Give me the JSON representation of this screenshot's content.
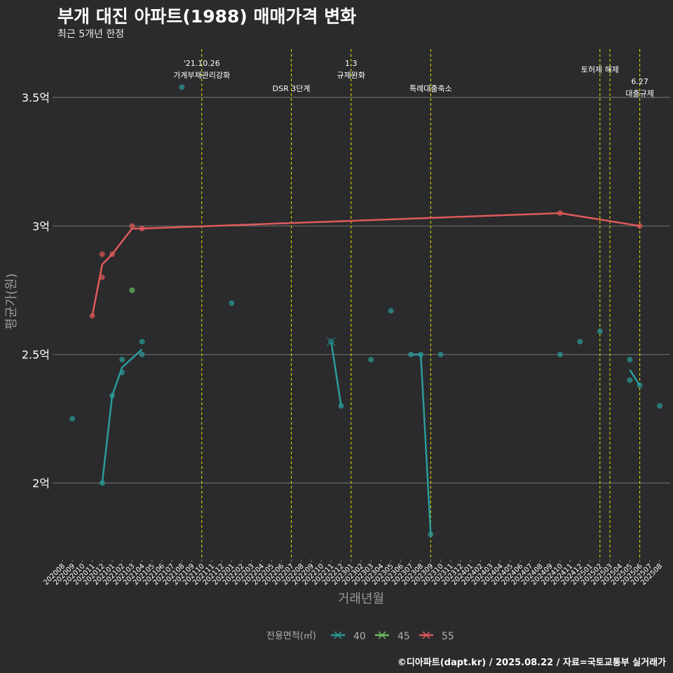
{
  "title": "부개 대진 아파트(1988) 매매가격 변화",
  "subtitle": "최근 5개년 한정",
  "caption": "©디아파트(dapt.kr) / 2025.08.22 / 자료=국토교통부 실거래가",
  "chart_data": {
    "type": "line",
    "xlabel": "거래년월",
    "ylabel": "평균가(원)",
    "ylim": [
      1.7,
      3.7
    ],
    "y_ticks": [
      {
        "value": 2.0,
        "label": "2억"
      },
      {
        "value": 2.5,
        "label": "2.5억"
      },
      {
        "value": 3.0,
        "label": "3억"
      },
      {
        "value": 3.5,
        "label": "3.5억"
      }
    ],
    "x_categories": [
      "202008",
      "202009",
      "202010",
      "202011",
      "202012",
      "202101",
      "202102",
      "202103",
      "202104",
      "202105",
      "202106",
      "202107",
      "202108",
      "202109",
      "202110",
      "202111",
      "202112",
      "202201",
      "202202",
      "202203",
      "202204",
      "202205",
      "202206",
      "202207",
      "202208",
      "202209",
      "202210",
      "202211",
      "202212",
      "202301",
      "202302",
      "202303",
      "202304",
      "202305",
      "202306",
      "202307",
      "202308",
      "202309",
      "202310",
      "202311",
      "202312",
      "202401",
      "202402",
      "202403",
      "202404",
      "202405",
      "202406",
      "202407",
      "202408",
      "202409",
      "202410",
      "202411",
      "202412",
      "202501",
      "202502",
      "202503",
      "202504",
      "202505",
      "202506",
      "202507",
      "202508"
    ],
    "grid": true,
    "legend_title": "전용면적(㎡)",
    "legend_position": "bottom",
    "series": [
      {
        "name": "40",
        "color": "#2a9d9a",
        "line": [
          [
            [
              "202012",
              2.0
            ],
            [
              "202101",
              2.34
            ],
            [
              "202102",
              2.45
            ],
            [
              "202104",
              2.52
            ]
          ],
          [
            [
              "202211",
              2.55
            ],
            [
              "202212",
              2.3
            ]
          ],
          [
            [
              "202307",
              2.5
            ],
            [
              "202308",
              2.5
            ],
            [
              "202309",
              1.8
            ]
          ],
          [
            [
              "202505",
              2.44
            ],
            [
              "202506",
              2.38
            ]
          ]
        ],
        "points": [
          [
            "202009",
            2.25
          ],
          [
            "202012",
            2.0
          ],
          [
            "202101",
            2.34
          ],
          [
            "202102",
            2.48
          ],
          [
            "202102",
            2.43
          ],
          [
            "202104",
            2.55
          ],
          [
            "202104",
            2.5
          ],
          [
            "202108",
            3.54
          ],
          [
            "202201",
            2.7
          ],
          [
            "202211",
            2.55
          ],
          [
            "202212",
            2.3
          ],
          [
            "202303",
            2.48
          ],
          [
            "202305",
            2.67
          ],
          [
            "202307",
            2.5
          ],
          [
            "202308",
            2.5
          ],
          [
            "202309",
            1.8
          ],
          [
            "202310",
            2.5
          ],
          [
            "202410",
            2.5
          ],
          [
            "202412",
            2.55
          ],
          [
            "202502",
            2.59
          ],
          [
            "202505",
            2.48
          ],
          [
            "202505",
            2.4
          ],
          [
            "202506",
            2.38
          ],
          [
            "202508",
            2.3
          ]
        ]
      },
      {
        "name": "45",
        "color": "#6abf5e",
        "line": [],
        "points": [
          [
            "202103",
            2.75
          ]
        ]
      },
      {
        "name": "55",
        "color": "#e05a5a",
        "line": [
          [
            [
              "202011",
              2.65
            ],
            [
              "202012",
              2.85
            ],
            [
              "202101",
              2.89
            ],
            [
              "202103",
              2.99
            ],
            [
              "202104",
              2.99
            ],
            [
              "202410",
              3.05
            ],
            [
              "202506",
              3.0
            ]
          ]
        ],
        "points": [
          [
            "202011",
            2.65
          ],
          [
            "202012",
            2.89
          ],
          [
            "202012",
            2.8
          ],
          [
            "202101",
            2.89
          ],
          [
            "202103",
            3.0
          ],
          [
            "202104",
            2.99
          ],
          [
            "202410",
            3.05
          ],
          [
            "202506",
            3.0
          ]
        ]
      }
    ],
    "events": [
      {
        "x": "202110",
        "label_lines": [
          "'21.10.26",
          "가계부채관리강화"
        ],
        "level": "high"
      },
      {
        "x": "202207",
        "label_lines": [
          "DSR 3단계"
        ],
        "level": "low"
      },
      {
        "x": "202301",
        "label_lines": [
          "1.3",
          "규제완화"
        ],
        "level": "high"
      },
      {
        "x": "202309",
        "label_lines": [
          "특례대출축소"
        ],
        "level": "low"
      },
      {
        "x": "202502",
        "label_lines": [
          "토허제 해제"
        ],
        "level": "mid"
      },
      {
        "x": "202503",
        "label_lines": [],
        "level": "none"
      },
      {
        "x": "202506",
        "label_lines": [
          "6.27",
          "대출규제"
        ],
        "level": "lowtwo"
      }
    ],
    "event_line_color": "#e6e600",
    "grid_color": "#6a6a6a"
  }
}
